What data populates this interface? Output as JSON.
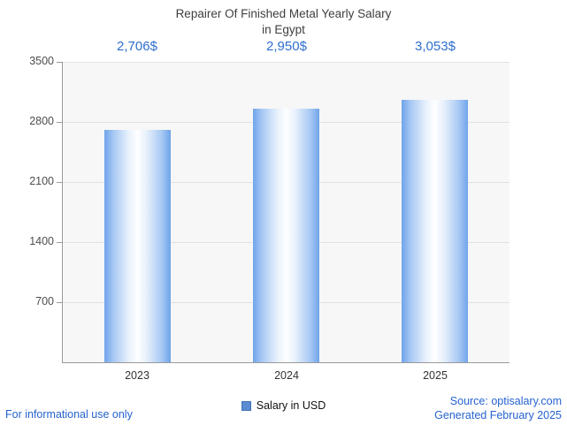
{
  "title_line1": "Repairer Of Finished Metal Yearly Salary",
  "title_line2": "in Egypt",
  "chart_data": {
    "type": "bar",
    "title": "Repairer Of Finished Metal Yearly Salary in Egypt",
    "categories": [
      "2023",
      "2024",
      "2025"
    ],
    "values": [
      2706,
      2950,
      3053
    ],
    "value_labels": [
      "2,706$",
      "2,950$",
      "3,053$"
    ],
    "ylim": [
      0,
      3500
    ],
    "yticks": [
      700,
      1400,
      2100,
      2800,
      3500
    ],
    "grid": "horizontal",
    "legend_entries": [
      "Salary in USD"
    ],
    "legend_position": "bottom-center",
    "xlabel": "",
    "ylabel": ""
  },
  "legend": {
    "label": "Salary in USD"
  },
  "footer": {
    "disclaimer": "For informational use only",
    "source": "Source: optisalary.com",
    "generated": "Generated February 2025"
  },
  "colors": {
    "accent_text": "#2e6fce",
    "link_text": "#2563cf",
    "bar_edge": "#6fa4ea",
    "bar_center": "#ffffff",
    "legend_swatch": "#5b8bd0",
    "plot_background": "#f7f7f7",
    "gridline": "#e2e2e2",
    "axis": "#9a9a9a",
    "title_text": "#3f3f3f"
  }
}
